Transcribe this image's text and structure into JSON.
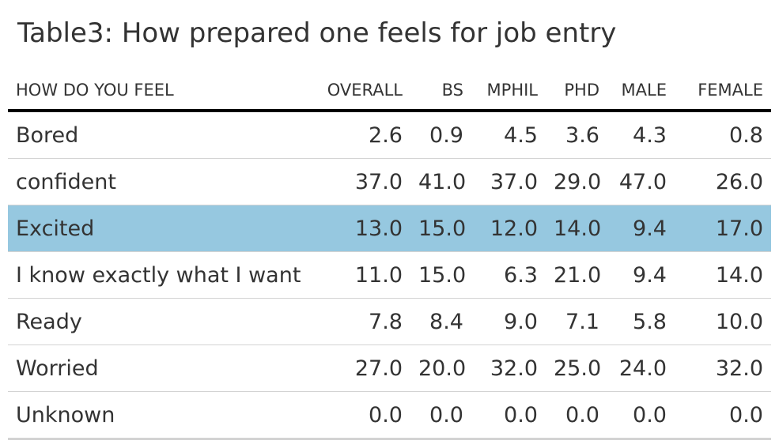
{
  "colors": {
    "highlight": "#96c8e0",
    "header_rule": "#000000",
    "row_rule": "#d3d3d3"
  },
  "chart_data": {
    "type": "table",
    "title": "Table3: How prepared one feels for job entry",
    "columns": [
      "HOW DO YOU FEEL",
      "OVERALL",
      "BS",
      "MPHIL",
      "PHD",
      "MALE",
      "FEMALE"
    ],
    "highlighted_row": "Excited",
    "rows": [
      {
        "label": "Bored",
        "values": [
          "2.6",
          "0.9",
          "4.5",
          "3.6",
          "4.3",
          "0.8"
        ]
      },
      {
        "label": "confident",
        "values": [
          "37.0",
          "41.0",
          "37.0",
          "29.0",
          "47.0",
          "26.0"
        ]
      },
      {
        "label": "Excited",
        "values": [
          "13.0",
          "15.0",
          "12.0",
          "14.0",
          "9.4",
          "17.0"
        ]
      },
      {
        "label": "I know exactly what I want",
        "values": [
          "11.0",
          "15.0",
          "6.3",
          "21.0",
          "9.4",
          "14.0"
        ]
      },
      {
        "label": "Ready",
        "values": [
          "7.8",
          "8.4",
          "9.0",
          "7.1",
          "5.8",
          "10.0"
        ]
      },
      {
        "label": "Worried",
        "values": [
          "27.0",
          "20.0",
          "32.0",
          "25.0",
          "24.0",
          "32.0"
        ]
      },
      {
        "label": "Unknown",
        "values": [
          "0.0",
          "0.0",
          "0.0",
          "0.0",
          "0.0",
          "0.0"
        ]
      }
    ]
  }
}
